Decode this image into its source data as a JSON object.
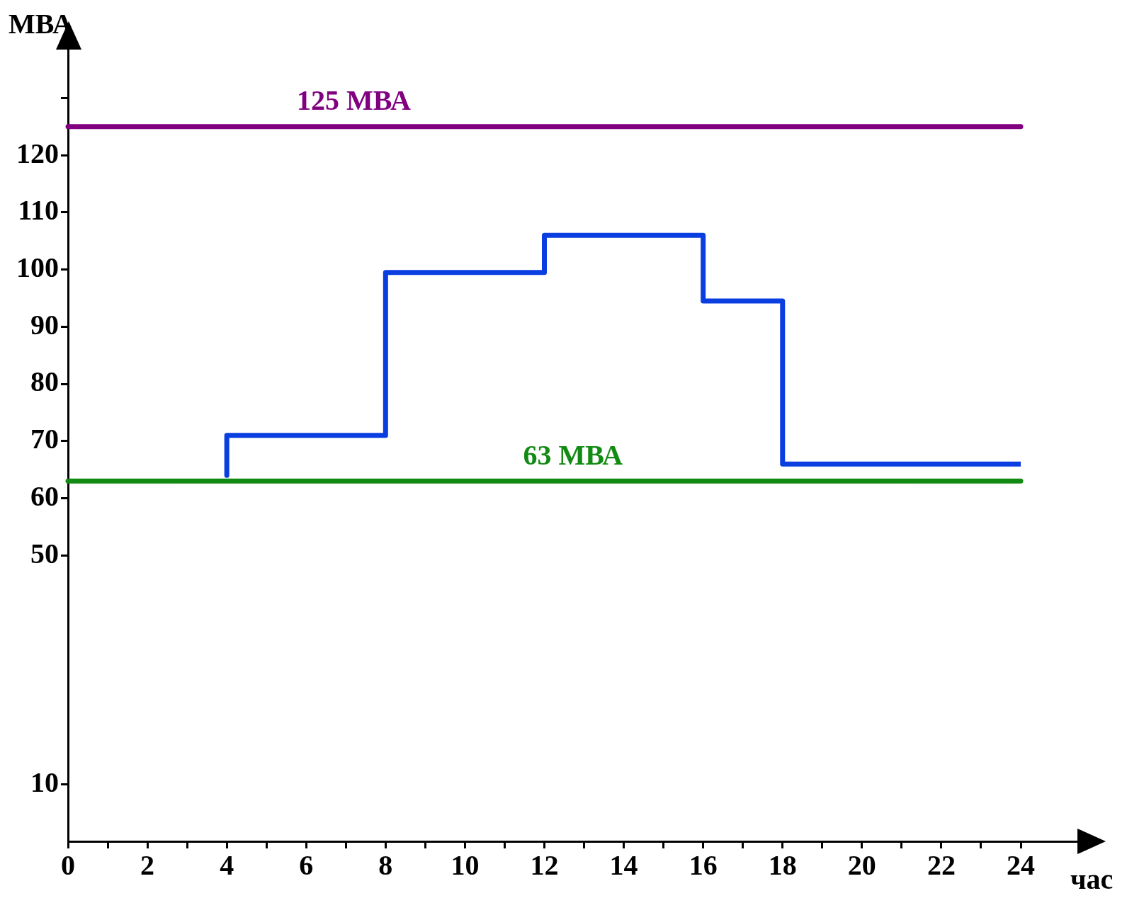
{
  "chart_data": {
    "type": "step",
    "xlabel": "час",
    "ylabel": "МВА",
    "x": [
      4,
      4,
      8,
      12,
      16,
      18,
      24
    ],
    "series": [
      {
        "color": "#0a3ee0",
        "values": [
          64,
          71,
          99.5,
          106,
          94.5,
          66,
          66
        ]
      }
    ],
    "xlim": [
      0,
      24
    ],
    "xticks": [
      0,
      {
        "value": 1,
        "label": null
      },
      2,
      {
        "value": 3,
        "label": null
      },
      4,
      {
        "value": 5,
        "label": null
      },
      6,
      {
        "value": 7,
        "label": null
      },
      8,
      {
        "value": 9,
        "label": null
      },
      10,
      {
        "value": 11,
        "label": null
      },
      12,
      {
        "value": 13,
        "label": null
      },
      14,
      {
        "value": 15,
        "label": null
      },
      16,
      {
        "value": 17,
        "label": null
      },
      18,
      {
        "value": 19,
        "label": null
      },
      20,
      {
        "value": 21,
        "label": null
      },
      22,
      {
        "value": 23,
        "label": null
      },
      24
    ],
    "ylim": [
      0,
      136
    ],
    "yticks": [
      10,
      50,
      60,
      70,
      80,
      90,
      100,
      110,
      120,
      {
        "value": 130,
        "label": null
      }
    ],
    "ref_lines": [
      {
        "axis": "y",
        "value": 125,
        "label": "125 МВА",
        "color": "#800080"
      },
      {
        "axis": "y",
        "value": 63,
        "label": "63 МВА",
        "color": "#138a13"
      }
    ],
    "grid": false,
    "legend": false,
    "line_style": "solid",
    "marker": "none"
  }
}
